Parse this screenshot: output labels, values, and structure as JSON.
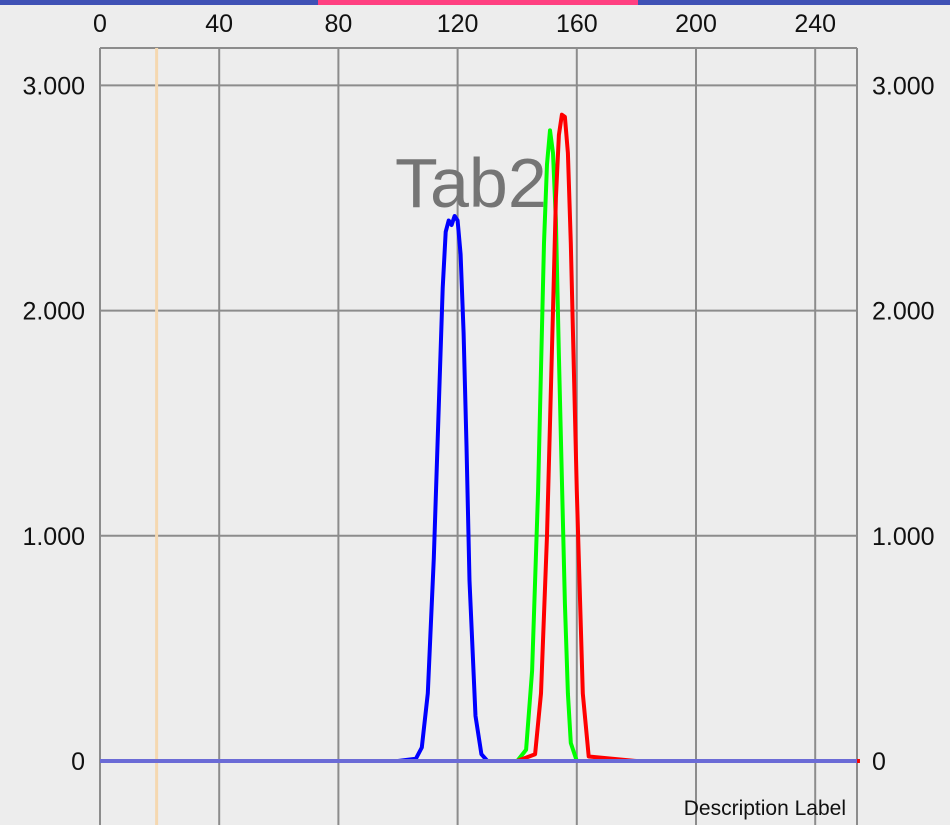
{
  "tab_indicator": {
    "colors": [
      "#3f51b5",
      "#ff4081",
      "#3f51b5"
    ]
  },
  "colors": {
    "background": "#ededed",
    "grid": "#8c8c8c",
    "marker_line": "#f5d8b0",
    "baseline": "#6b6bd6"
  },
  "watermark": "Tab2",
  "description": "Description Label",
  "chart_data": {
    "type": "line",
    "title": "",
    "xlabel": "",
    "ylabel": "",
    "x_axis_position": "top",
    "y_axis": "left and right",
    "grid": true,
    "xlim": [
      0,
      255
    ],
    "ylim": [
      -500,
      3200
    ],
    "x_ticks": [
      0,
      40,
      80,
      120,
      160,
      200,
      240
    ],
    "x_tick_labels": [
      "0",
      "40",
      "80",
      "120",
      "160",
      "200",
      "240"
    ],
    "y_ticks": [
      0,
      1000,
      2000,
      3000
    ],
    "y_tick_labels": [
      "0",
      "1.000",
      "2.000",
      "3.000"
    ],
    "limit_line": {
      "x": 19,
      "color": "#f5d8b0"
    },
    "series": [
      {
        "color": "#0000ff",
        "x": [
          0,
          100,
          106,
          108,
          110,
          112,
          114,
          115,
          116,
          117,
          118,
          119,
          120,
          121,
          122,
          123,
          124,
          126,
          128,
          130,
          140,
          160,
          200,
          255
        ],
        "y": [
          0,
          0,
          10,
          60,
          300,
          900,
          1700,
          2100,
          2350,
          2400,
          2380,
          2420,
          2400,
          2250,
          1900,
          1400,
          800,
          200,
          30,
          0,
          0,
          0,
          0,
          0
        ]
      },
      {
        "color": "#00ff00",
        "x": [
          0,
          130,
          140,
          143,
          145,
          147,
          149,
          150,
          151,
          152,
          153,
          154,
          156,
          157,
          158,
          160,
          180,
          255
        ],
        "y": [
          0,
          0,
          0,
          50,
          400,
          1200,
          2300,
          2650,
          2800,
          2700,
          2400,
          1800,
          700,
          300,
          80,
          0,
          0,
          0
        ]
      },
      {
        "color": "#ff0000",
        "x": [
          0,
          140,
          146,
          148,
          150,
          152,
          153,
          154,
          155,
          156,
          157,
          158,
          160,
          162,
          164,
          180,
          255
        ],
        "y": [
          0,
          0,
          30,
          300,
          1000,
          2000,
          2500,
          2780,
          2870,
          2860,
          2700,
          2300,
          1200,
          300,
          20,
          0,
          0
        ]
      }
    ]
  }
}
